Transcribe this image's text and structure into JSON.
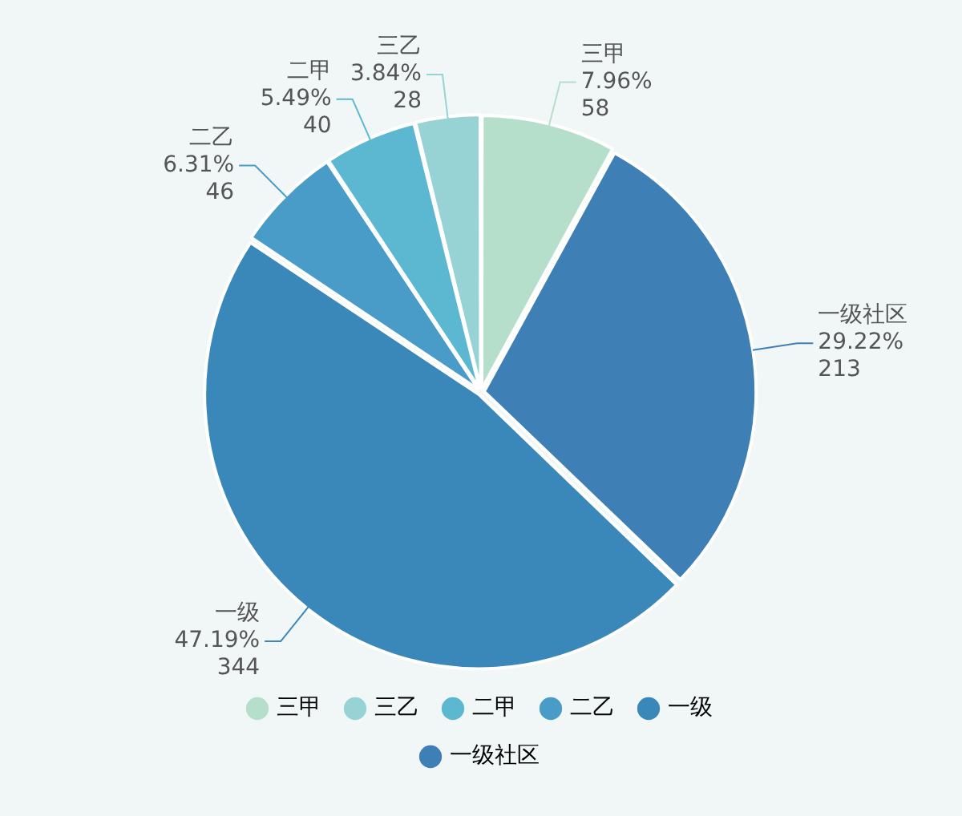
{
  "chart_data": {
    "type": "pie",
    "categories": [
      "三甲",
      "三乙",
      "二甲",
      "二乙",
      "一级",
      "一级社区"
    ],
    "values": [
      58,
      28,
      40,
      46,
      344,
      213
    ],
    "colors": [
      "#b5dfcb",
      "#97d3d4",
      "#5bb8d0",
      "#4a9cc8",
      "#3a87b9",
      "#3e7fb6"
    ],
    "value_labels": [
      "7.96%\n58",
      "3.84%\n28",
      "5.49%\n40",
      "6.31%\n46",
      "47.19%\n344",
      "29.22%\n213"
    ],
    "legend": "bottom"
  }
}
